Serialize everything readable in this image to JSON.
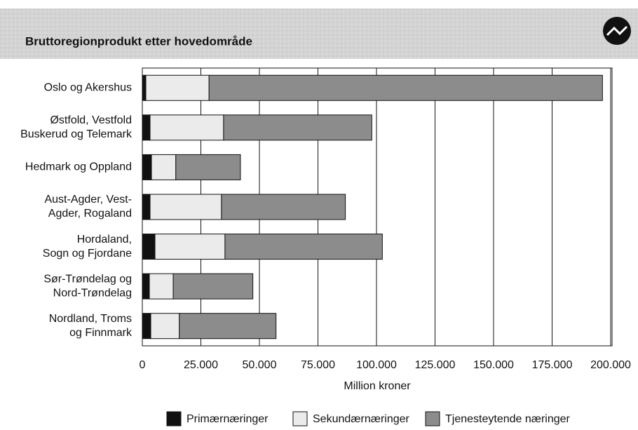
{
  "chart_data": {
    "type": "stacked_barh",
    "title": "Bruttoregionprodukt etter hovedområde",
    "categories": [
      [
        "Oslo og Akershus"
      ],
      [
        "Østfold, Vestfold",
        "Buskerud og Telemark"
      ],
      [
        "Hedmark og Oppland"
      ],
      [
        "Aust-Agder, Vest-",
        "Agder, Rogaland"
      ],
      [
        "Hordaland,",
        "Sogn og Fjordane"
      ],
      [
        "Sør-Trøndelag og",
        "Nord-Trøndelag"
      ],
      [
        "Nordland, Troms",
        "og Finnmark"
      ]
    ],
    "series": [
      {
        "name": "Primærnæringer",
        "color": "#111111",
        "values": [
          1500,
          3300,
          3900,
          3300,
          5400,
          3000,
          3600
        ]
      },
      {
        "name": "Sekundærnæringer",
        "color": "#ebebeb",
        "values": [
          27000,
          31400,
          10400,
          30500,
          29900,
          10200,
          12200
        ]
      },
      {
        "name": "Tjenesteytende næringer",
        "color": "#8c8c8c",
        "values": [
          168000,
          63300,
          27600,
          52900,
          67200,
          34000,
          41300
        ]
      }
    ],
    "xlabel": "Million kroner",
    "xlim": [
      0,
      200000
    ],
    "xticks": [
      0,
      {
        "value": 25000,
        "label": "25.000"
      },
      {
        "value": 50000,
        "label": "50.000"
      },
      {
        "value": 75000,
        "label": "75.000"
      },
      {
        "value": 100000,
        "label": "100.000"
      },
      {
        "value": 125000,
        "label": "125.000"
      },
      {
        "value": 150000,
        "label": "150.000"
      },
      {
        "value": 175000,
        "label": "175.000"
      },
      {
        "value": 200000,
        "label": "200.000"
      }
    ],
    "grid": true
  }
}
